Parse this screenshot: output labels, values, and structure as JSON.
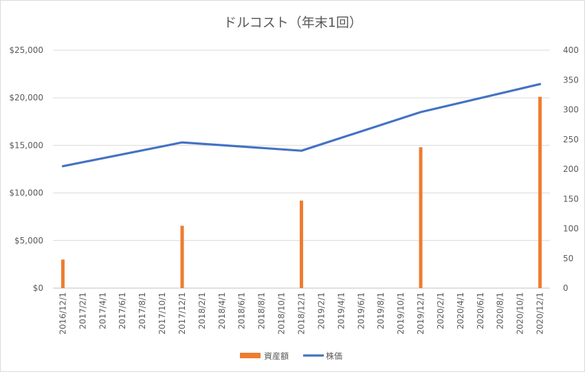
{
  "chart_data": {
    "type": "bar+line",
    "title": "ドルコスト（年末1回）",
    "categories": [
      "2016/12/1",
      "2017/2/1",
      "2017/4/1",
      "2017/6/1",
      "2017/8/1",
      "2017/10/1",
      "2017/12/1",
      "2018/2/1",
      "2018/4/1",
      "2018/6/1",
      "2018/8/1",
      "2018/10/1",
      "2018/12/1",
      "2019/2/1",
      "2019/4/1",
      "2019/6/1",
      "2019/8/1",
      "2019/10/1",
      "2019/12/1",
      "2020/2/1",
      "2020/4/1",
      "2020/6/1",
      "2020/8/1",
      "2020/10/1",
      "2020/12/1"
    ],
    "y_left": {
      "ylim": [
        0,
        25000
      ],
      "ticks": [
        0,
        5000,
        10000,
        15000,
        20000,
        25000
      ],
      "tick_labels": [
        "$0",
        "$5,000",
        "$10,000",
        "$15,000",
        "$20,000",
        "$25,000"
      ]
    },
    "y_right": {
      "ylim": [
        0,
        400
      ],
      "ticks": [
        0,
        50,
        100,
        150,
        200,
        250,
        300,
        350,
        400
      ],
      "tick_labels": [
        "0",
        "50",
        "100",
        "150",
        "200",
        "250",
        "300",
        "350",
        "400"
      ]
    },
    "series": [
      {
        "name": "資産額",
        "kind": "bar",
        "axis": "left",
        "color": "#ED7D31",
        "values": [
          3000,
          null,
          null,
          null,
          null,
          null,
          6550,
          null,
          null,
          null,
          null,
          null,
          9200,
          null,
          null,
          null,
          null,
          null,
          14800,
          null,
          null,
          null,
          null,
          null,
          20100
        ]
      },
      {
        "name": "株価",
        "kind": "line",
        "axis": "right",
        "color": "#4472C4",
        "values": [
          205,
          null,
          null,
          null,
          null,
          null,
          245,
          null,
          null,
          null,
          null,
          null,
          231,
          null,
          null,
          null,
          null,
          null,
          296,
          null,
          null,
          null,
          null,
          null,
          343
        ]
      }
    ],
    "grid": true,
    "legend_position": "bottom"
  }
}
